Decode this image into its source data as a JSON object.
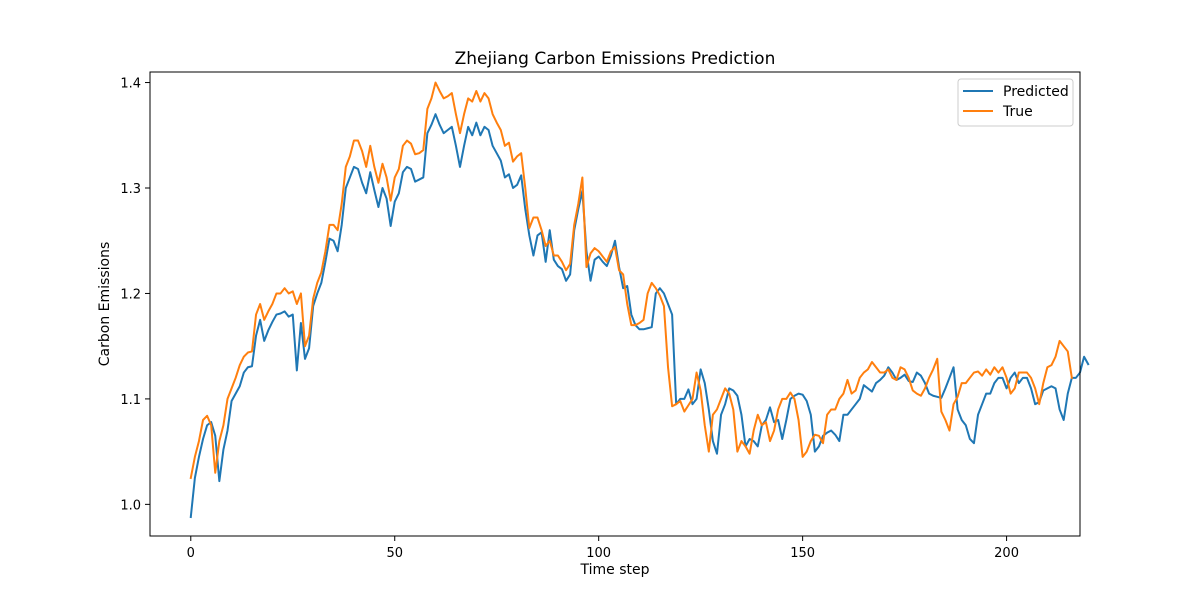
{
  "chart_data": {
    "type": "line",
    "title": "Zhejiang Carbon Emissions Prediction",
    "xlabel": "Time step",
    "ylabel": "Carbon Emissions",
    "xlim": [
      -10,
      218
    ],
    "ylim": [
      0.97,
      1.41
    ],
    "xticks": [
      0,
      50,
      100,
      150,
      200
    ],
    "yticks": [
      1.0,
      1.1,
      1.2,
      1.3,
      1.4
    ],
    "xtick_labels": [
      "0",
      "50",
      "100",
      "150",
      "200"
    ],
    "ytick_labels": [
      "1.0",
      "1.1",
      "1.2",
      "1.3",
      "1.4"
    ],
    "grid": false,
    "legend_position": "top-right",
    "series": [
      {
        "name": "Predicted",
        "color": "#1f77b4",
        "values": [
          0.988,
          1.025,
          1.045,
          1.062,
          1.075,
          1.078,
          1.065,
          1.022,
          1.052,
          1.07,
          1.098,
          1.105,
          1.112,
          1.125,
          1.13,
          1.131,
          1.16,
          1.175,
          1.155,
          1.165,
          1.173,
          1.18,
          1.181,
          1.183,
          1.178,
          1.18,
          1.127,
          1.172,
          1.138,
          1.148,
          1.188,
          1.2,
          1.21,
          1.23,
          1.252,
          1.25,
          1.24,
          1.265,
          1.3,
          1.31,
          1.32,
          1.318,
          1.305,
          1.295,
          1.315,
          1.298,
          1.282,
          1.3,
          1.29,
          1.264,
          1.287,
          1.295,
          1.315,
          1.32,
          1.318,
          1.306,
          1.308,
          1.31,
          1.352,
          1.36,
          1.37,
          1.36,
          1.352,
          1.355,
          1.358,
          1.34,
          1.32,
          1.34,
          1.358,
          1.35,
          1.362,
          1.35,
          1.358,
          1.355,
          1.34,
          1.333,
          1.326,
          1.31,
          1.313,
          1.3,
          1.303,
          1.312,
          1.28,
          1.255,
          1.236,
          1.255,
          1.258,
          1.23,
          1.26,
          1.232,
          1.226,
          1.223,
          1.212,
          1.218,
          1.26,
          1.28,
          1.297,
          1.24,
          1.212,
          1.232,
          1.235,
          1.23,
          1.226,
          1.236,
          1.25,
          1.225,
          1.205,
          1.207,
          1.18,
          1.17,
          1.166,
          1.166,
          1.167,
          1.168,
          1.2,
          1.205,
          1.2,
          1.19,
          1.18,
          1.095,
          1.1,
          1.1,
          1.109,
          1.095,
          1.1,
          1.128,
          1.115,
          1.09,
          1.06,
          1.048,
          1.085,
          1.095,
          1.11,
          1.108,
          1.103,
          1.085,
          1.055,
          1.062,
          1.06,
          1.055,
          1.075,
          1.08,
          1.092,
          1.078,
          1.08,
          1.062,
          1.08,
          1.1,
          1.103,
          1.105,
          1.104,
          1.098,
          1.085,
          1.05,
          1.055,
          1.065,
          1.068,
          1.07,
          1.066,
          1.06,
          1.085,
          1.085,
          1.09,
          1.095,
          1.1,
          1.113,
          1.11,
          1.107,
          1.115,
          1.118,
          1.122,
          1.13,
          1.125,
          1.118,
          1.12,
          1.123,
          1.117,
          1.116,
          1.125,
          1.122,
          1.115,
          1.105,
          1.103,
          1.102,
          1.101,
          1.11,
          1.12,
          1.13,
          1.09,
          1.08,
          1.075,
          1.062,
          1.058,
          1.085,
          1.095,
          1.105,
          1.105,
          1.115,
          1.12,
          1.12,
          1.11,
          1.12,
          1.125,
          1.115,
          1.12,
          1.12,
          1.11,
          1.095,
          1.097,
          1.108,
          1.11,
          1.112,
          1.11,
          1.09,
          1.08,
          1.105,
          1.12,
          1.12,
          1.125,
          1.14,
          1.133
        ]
      },
      {
        "name": "True",
        "color": "#ff7f0e",
        "values": [
          1.025,
          1.045,
          1.06,
          1.08,
          1.084,
          1.075,
          1.03,
          1.06,
          1.075,
          1.1,
          1.11,
          1.12,
          1.132,
          1.14,
          1.144,
          1.145,
          1.18,
          1.19,
          1.175,
          1.183,
          1.19,
          1.2,
          1.2,
          1.205,
          1.2,
          1.202,
          1.19,
          1.2,
          1.15,
          1.16,
          1.195,
          1.21,
          1.22,
          1.24,
          1.265,
          1.265,
          1.26,
          1.285,
          1.32,
          1.33,
          1.345,
          1.345,
          1.335,
          1.32,
          1.34,
          1.32,
          1.305,
          1.323,
          1.31,
          1.288,
          1.31,
          1.318,
          1.34,
          1.345,
          1.342,
          1.332,
          1.333,
          1.336,
          1.375,
          1.385,
          1.4,
          1.392,
          1.385,
          1.387,
          1.39,
          1.37,
          1.352,
          1.37,
          1.385,
          1.382,
          1.392,
          1.382,
          1.39,
          1.385,
          1.37,
          1.362,
          1.355,
          1.34,
          1.343,
          1.325,
          1.33,
          1.333,
          1.3,
          1.262,
          1.272,
          1.272,
          1.26,
          1.245,
          1.25,
          1.236,
          1.236,
          1.23,
          1.222,
          1.228,
          1.265,
          1.285,
          1.31,
          1.225,
          1.238,
          1.243,
          1.24,
          1.235,
          1.23,
          1.24,
          1.244,
          1.222,
          1.218,
          1.19,
          1.17,
          1.17,
          1.172,
          1.175,
          1.2,
          1.21,
          1.205,
          1.198,
          1.188,
          1.13,
          1.093,
          1.095,
          1.098,
          1.088,
          1.094,
          1.1,
          1.125,
          1.108,
          1.075,
          1.05,
          1.085,
          1.09,
          1.1,
          1.11,
          1.105,
          1.09,
          1.05,
          1.06,
          1.055,
          1.048,
          1.07,
          1.085,
          1.075,
          1.078,
          1.06,
          1.07,
          1.09,
          1.1,
          1.1,
          1.106,
          1.1,
          1.08,
          1.045,
          1.05,
          1.06,
          1.066,
          1.065,
          1.058,
          1.085,
          1.09,
          1.09,
          1.1,
          1.105,
          1.118,
          1.105,
          1.108,
          1.12,
          1.125,
          1.128,
          1.135,
          1.13,
          1.125,
          1.125,
          1.128,
          1.12,
          1.118,
          1.13,
          1.128,
          1.12,
          1.108,
          1.105,
          1.103,
          1.11,
          1.12,
          1.128,
          1.138,
          1.088,
          1.08,
          1.07,
          1.095,
          1.102,
          1.115,
          1.115,
          1.12,
          1.125,
          1.126,
          1.122,
          1.128,
          1.123,
          1.13,
          1.125,
          1.13,
          1.12,
          1.105,
          1.11,
          1.125,
          1.125,
          1.125,
          1.12,
          1.11,
          1.095,
          1.115,
          1.13,
          1.132,
          1.14,
          1.155,
          1.15,
          1.145,
          1.12
        ]
      }
    ]
  }
}
